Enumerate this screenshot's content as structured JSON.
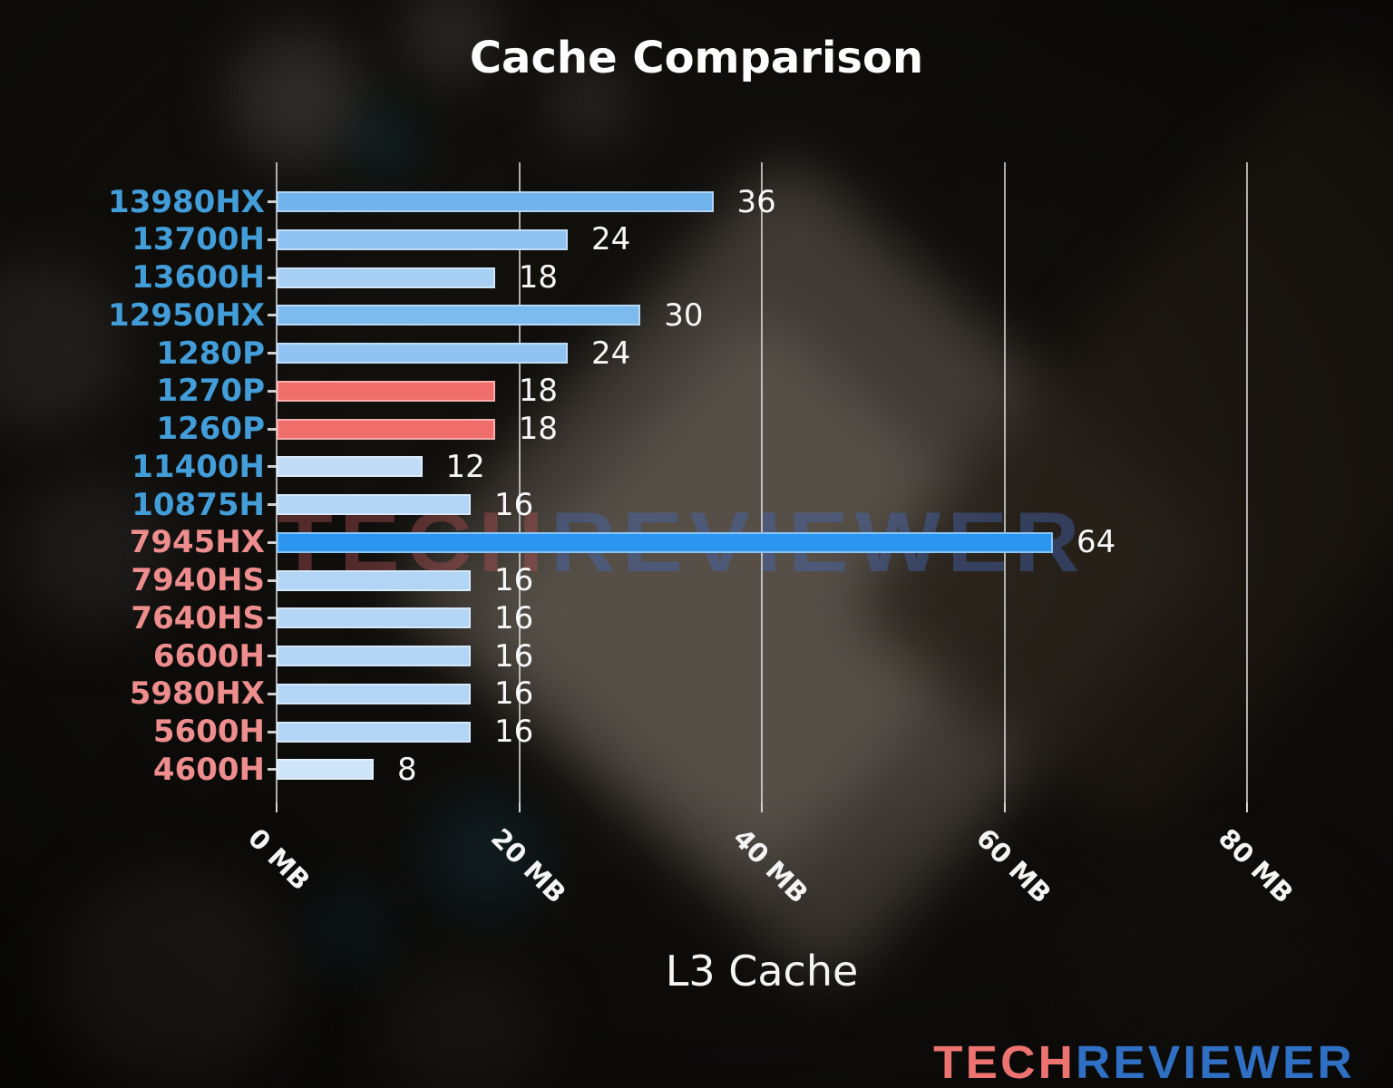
{
  "title": "Cache Comparison",
  "xlabel": "L3 Cache",
  "watermark": {
    "part1": "TECH",
    "part2": "REVIEWER"
  },
  "logo": {
    "part1": "TECH",
    "part2": "REVIEWER"
  },
  "palette": {
    "intel_label": "#429dd9",
    "amd_label": "#ee8d8d",
    "highlight_bar": "#2b95f0",
    "red_bar": "#ef6d6b",
    "grid": "#e4e4e4",
    "text": "#f5f5f5"
  },
  "chart_data": {
    "type": "bar",
    "orientation": "horizontal",
    "title": "Cache Comparison",
    "xlabel": "L3 Cache",
    "xlim": [
      0,
      80
    ],
    "grid": true,
    "xticks": [
      {
        "value": 0,
        "label": "0 MB"
      },
      {
        "value": 20,
        "label": "20 MB"
      },
      {
        "value": 40,
        "label": "40 MB"
      },
      {
        "value": 60,
        "label": "60 MB"
      },
      {
        "value": 80,
        "label": "80 MB"
      }
    ],
    "categories": [
      "13980HX",
      "13700H",
      "13600H",
      "12950HX",
      "1280P",
      "1270P",
      "1260P",
      "11400H",
      "10875H",
      "7945HX",
      "7940HS",
      "7640HS",
      "6600H",
      "5980HX",
      "5600H",
      "4600H"
    ],
    "values": [
      36,
      24,
      18,
      30,
      24,
      18,
      18,
      12,
      16,
      64,
      16,
      16,
      16,
      16,
      16,
      8
    ],
    "rows": [
      {
        "label": "13980HX",
        "value": 36,
        "bar_color": "#6fb2ec",
        "vendor": "intel"
      },
      {
        "label": "13700H",
        "value": 24,
        "bar_color": "#90c3f1",
        "vendor": "intel"
      },
      {
        "label": "13600H",
        "value": 18,
        "bar_color": "#a8d0f4",
        "vendor": "intel"
      },
      {
        "label": "12950HX",
        "value": 30,
        "bar_color": "#7dbaee",
        "vendor": "intel"
      },
      {
        "label": "1280P",
        "value": 24,
        "bar_color": "#90c3f1",
        "vendor": "intel"
      },
      {
        "label": "1270P",
        "value": 18,
        "bar_color": "#ef6d6b",
        "vendor": "intel"
      },
      {
        "label": "1260P",
        "value": 18,
        "bar_color": "#ef6d6b",
        "vendor": "intel"
      },
      {
        "label": "11400H",
        "value": 12,
        "bar_color": "#c0dcf7",
        "vendor": "intel"
      },
      {
        "label": "10875H",
        "value": 16,
        "bar_color": "#b2d5f5",
        "vendor": "intel"
      },
      {
        "label": "7945HX",
        "value": 64,
        "bar_color": "#2b95f0",
        "vendor": "amd"
      },
      {
        "label": "7940HS",
        "value": 16,
        "bar_color": "#b2d5f5",
        "vendor": "amd"
      },
      {
        "label": "7640HS",
        "value": 16,
        "bar_color": "#b2d5f5",
        "vendor": "amd"
      },
      {
        "label": "6600H",
        "value": 16,
        "bar_color": "#b2d5f5",
        "vendor": "amd"
      },
      {
        "label": "5980HX",
        "value": 16,
        "bar_color": "#b2d5f5",
        "vendor": "amd"
      },
      {
        "label": "5600H",
        "value": 16,
        "bar_color": "#b2d5f5",
        "vendor": "amd"
      },
      {
        "label": "4600H",
        "value": 8,
        "bar_color": "#cde4f9",
        "vendor": "amd"
      }
    ]
  }
}
